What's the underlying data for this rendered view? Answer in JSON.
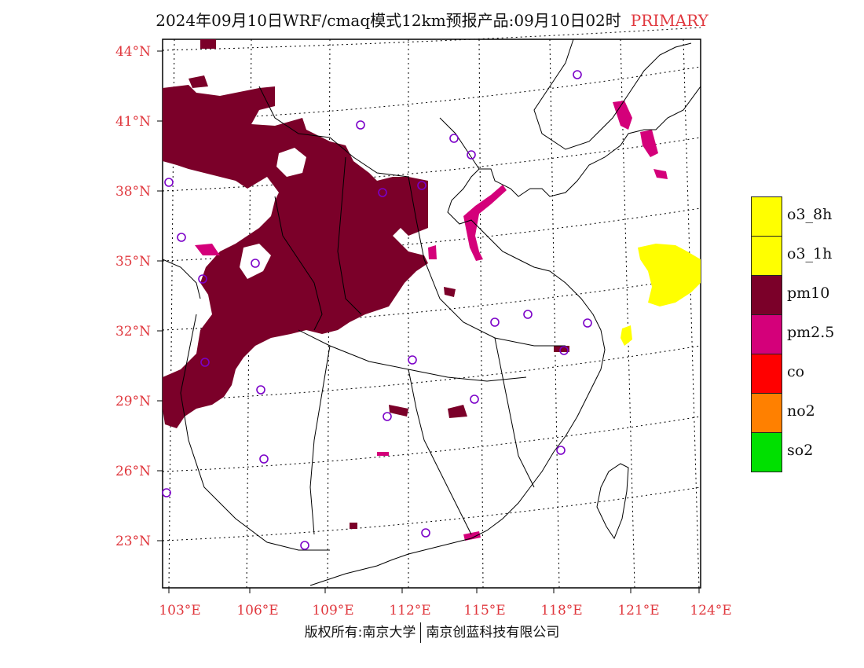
{
  "title": {
    "main": "2024年09月10日WRF/cmaq模式12km预报产品:09月10日02时",
    "tag": "PRIMARY"
  },
  "axes": {
    "lat_labels": [
      "44°N",
      "41°N",
      "38°N",
      "35°N",
      "32°N",
      "29°N",
      "26°N",
      "23°N"
    ],
    "lon_labels": [
      "103°E",
      "106°E",
      "109°E",
      "112°E",
      "115°E",
      "118°E",
      "121°E",
      "124°E"
    ],
    "label_color": "#e0383e"
  },
  "legend": [
    {
      "label": "o3_8h",
      "color": "#ffff00"
    },
    {
      "label": "o3_1h",
      "color": "#ffff00"
    },
    {
      "label": "pm10",
      "color": "#7b0029"
    },
    {
      "label": "pm2.5",
      "color": "#d4007a"
    },
    {
      "label": "co",
      "color": "#ff0000"
    },
    {
      "label": "no2",
      "color": "#ff8000"
    },
    {
      "label": "so2",
      "color": "#00e000"
    }
  ],
  "footer": {
    "left": "版权所有:南京大学",
    "right": "南京创蓝科技有限公司"
  },
  "stations_color": "#7b00c8",
  "colors": {
    "pm10": "#7b0029",
    "pm25": "#d4007a",
    "o3": "#ffff00"
  }
}
